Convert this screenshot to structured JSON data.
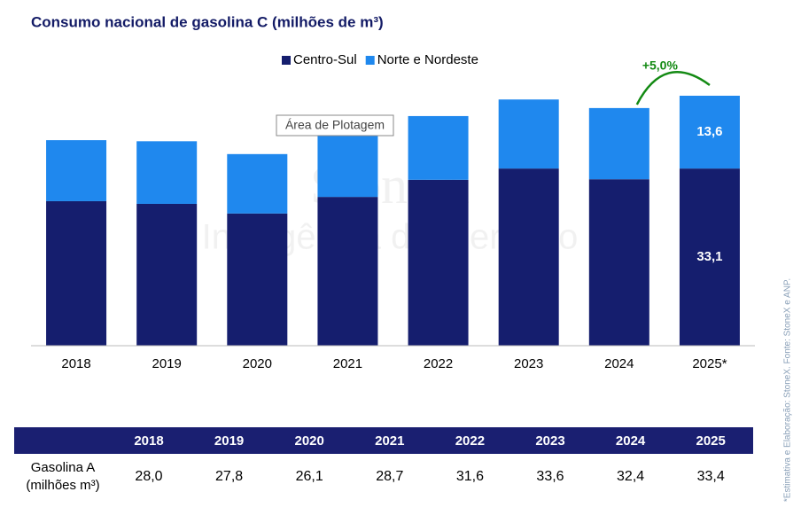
{
  "chart_data": {
    "type": "bar",
    "stacked": true,
    "title": "Consumo nacional de gasolina C (milhões de m³)",
    "categories": [
      "2018",
      "2019",
      "2020",
      "2021",
      "2022",
      "2023",
      "2024",
      "2025*"
    ],
    "series": [
      {
        "name": "Centro-Sul",
        "color": "#151e6e",
        "values": [
          27.0,
          26.5,
          24.7,
          27.8,
          31.0,
          33.1,
          31.1,
          33.1
        ],
        "value_labels": [
          null,
          null,
          null,
          null,
          null,
          null,
          null,
          "33,1"
        ]
      },
      {
        "name": "Norte e Nordeste",
        "color": "#1f88ee",
        "values": [
          11.4,
          11.7,
          11.1,
          12.3,
          11.9,
          12.9,
          13.3,
          13.6
        ],
        "value_labels": [
          null,
          null,
          null,
          null,
          null,
          null,
          null,
          "13,6"
        ]
      }
    ],
    "annotation": {
      "text": "+5,0%",
      "color": "#138a13"
    },
    "watermark": [
      "StoneX",
      "Inteligência de Mercado"
    ],
    "tooltip": "Área de Plotagem"
  },
  "table": {
    "header": [
      "2018",
      "2019",
      "2020",
      "2021",
      "2022",
      "2023",
      "2024",
      "2025"
    ],
    "row_label": [
      "Gasolina A",
      "(milhões m³)"
    ],
    "values": [
      "28,0",
      "27,8",
      "26,1",
      "28,7",
      "31,6",
      "33,6",
      "32,4",
      "33,4"
    ]
  },
  "footnote": "*Estimativa e Elaboração: StoneX. Fonte: StoneX e ANP."
}
